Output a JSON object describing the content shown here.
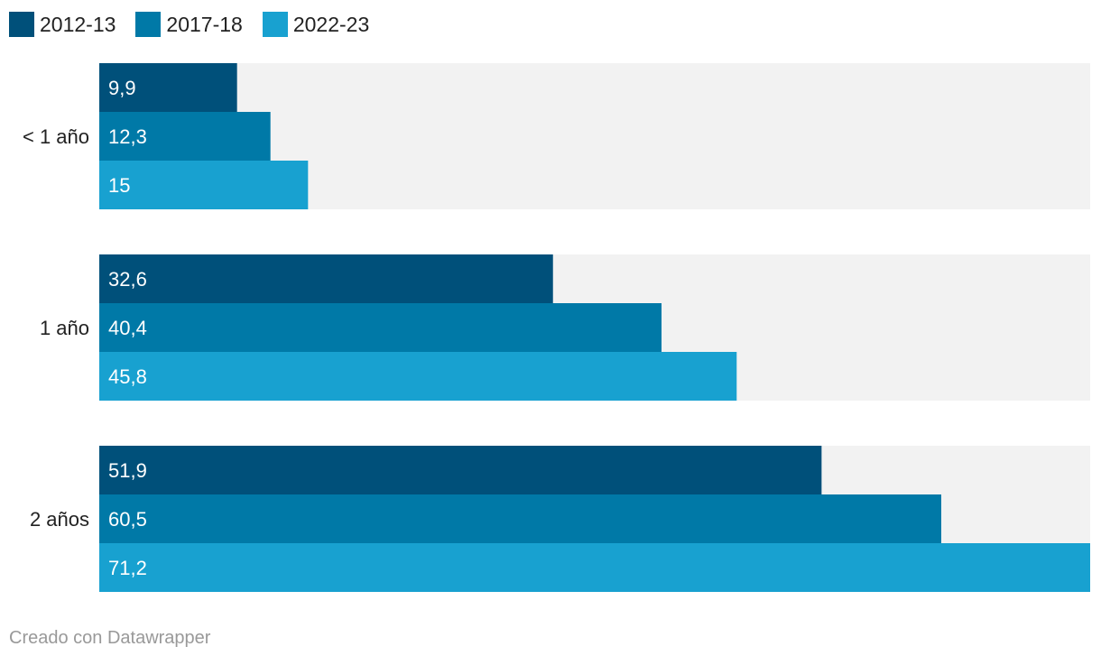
{
  "chart_data": {
    "type": "bar",
    "orientation": "horizontal",
    "categories": [
      "< 1 año",
      "1 año",
      "2 años"
    ],
    "series": [
      {
        "name": "2012-13",
        "values": [
          9.9,
          32.6,
          51.9
        ],
        "labels": [
          "9,9",
          "32,6",
          "51,9"
        ],
        "color": "#00507a"
      },
      {
        "name": "2017-18",
        "values": [
          12.3,
          40.4,
          60.5
        ],
        "labels": [
          "12,3",
          "40,4",
          "60,5"
        ],
        "color": "#0079a7"
      },
      {
        "name": "2022-23",
        "values": [
          15,
          45.8,
          71.2
        ],
        "labels": [
          "15",
          "45,8",
          "71,2"
        ],
        "color": "#18a1d0"
      }
    ],
    "xlim": [
      0,
      71.2
    ],
    "title": "",
    "xlabel": "",
    "ylabel": "",
    "legend_position": "top-left",
    "background_band_color": "#f2f2f2",
    "grid": false
  },
  "footer": {
    "credit": "Creado con Datawrapper"
  }
}
